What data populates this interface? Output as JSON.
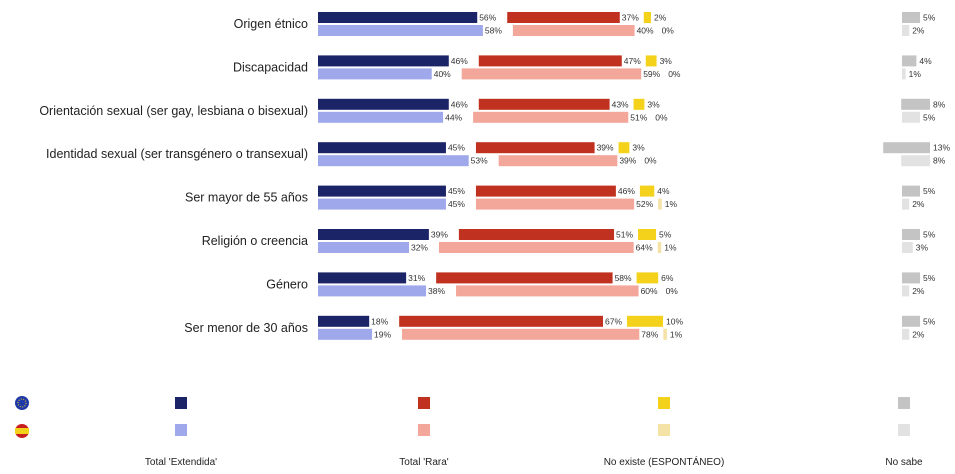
{
  "chart_data": {
    "type": "bar",
    "orientation": "horizontal",
    "stacked": true,
    "categories": [
      "Origen étnico",
      "Discapacidad",
      "Orientación sexual (ser gay, lesbiana o bisexual)",
      "Identidad sexual (ser transgénero o transexual)",
      "Ser mayor de 55 años",
      "Religión o creencia",
      "Género",
      "Ser menor de 30 años"
    ],
    "groups": [
      "EU",
      "ES"
    ],
    "series": [
      {
        "name": "Total 'Extendida'",
        "colors": {
          "EU": "#1a2466",
          "ES": "#9fa8ea"
        },
        "values": {
          "EU": [
            56,
            46,
            46,
            45,
            45,
            39,
            31,
            18
          ],
          "ES": [
            58,
            40,
            44,
            53,
            45,
            32,
            38,
            19
          ]
        }
      },
      {
        "name": "Total 'Rara'",
        "colors": {
          "EU": "#c0321f",
          "ES": "#f3a79b"
        },
        "values": {
          "EU": [
            37,
            47,
            43,
            39,
            46,
            51,
            58,
            67
          ],
          "ES": [
            40,
            59,
            51,
            39,
            52,
            64,
            60,
            78
          ]
        }
      },
      {
        "name": "No existe (ESPONTÁNEO)",
        "colors": {
          "EU": "#f4d11a",
          "ES": "#f5e2a6"
        },
        "values": {
          "EU": [
            2,
            3,
            3,
            3,
            4,
            5,
            6,
            10
          ],
          "ES": [
            0,
            0,
            0,
            0,
            1,
            1,
            0,
            1
          ]
        }
      },
      {
        "name": "No sabe",
        "colors": {
          "EU": "#c4c4c4",
          "ES": "#e2e2e2"
        },
        "values": {
          "EU": [
            5,
            4,
            8,
            13,
            5,
            5,
            5,
            5
          ],
          "ES": [
            2,
            1,
            5,
            8,
            2,
            3,
            2,
            2
          ]
        }
      }
    ],
    "value_suffix": "%",
    "legend": {
      "position": "bottom",
      "row_markers": [
        "EU",
        "ES"
      ]
    },
    "grid": false
  }
}
